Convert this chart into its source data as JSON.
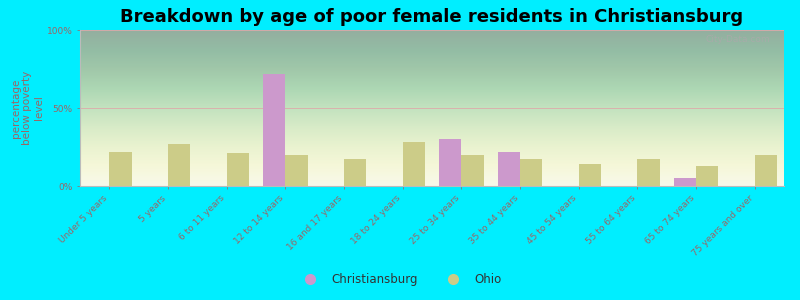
{
  "title": "Breakdown by age of poor female residents in Christiansburg",
  "ylabel": "percentage\nbelow poverty\nlevel",
  "categories": [
    "Under 5 years",
    "5 years",
    "6 to 11 years",
    "12 to 14 years",
    "16 and 17 years",
    "18 to 24 years",
    "25 to 34 years",
    "35 to 44 years",
    "45 to 54 years",
    "55 to 64 years",
    "65 to 74 years",
    "75 years and over"
  ],
  "christiansburg": [
    0,
    0,
    0,
    72,
    0,
    0,
    30,
    22,
    0,
    0,
    5,
    0
  ],
  "ohio": [
    22,
    27,
    21,
    20,
    17,
    28,
    20,
    17,
    14,
    17,
    13,
    20
  ],
  "christiansburg_color": "#cc99cc",
  "ohio_color": "#cccc88",
  "ylim": [
    0,
    100
  ],
  "yticks": [
    0,
    50,
    100
  ],
  "ytick_labels": [
    "0%",
    "50%",
    "100%"
  ],
  "title_fontsize": 13,
  "axis_label_fontsize": 7.5,
  "tick_label_fontsize": 6.5,
  "legend_fontsize": 8.5,
  "bar_width": 0.38,
  "outer_bg": "#00eeff",
  "text_color": "#996666",
  "watermark_color": "#aaaaaa",
  "gradient_top": "#f5f5ee",
  "gradient_bottom": "#d5e8b0"
}
